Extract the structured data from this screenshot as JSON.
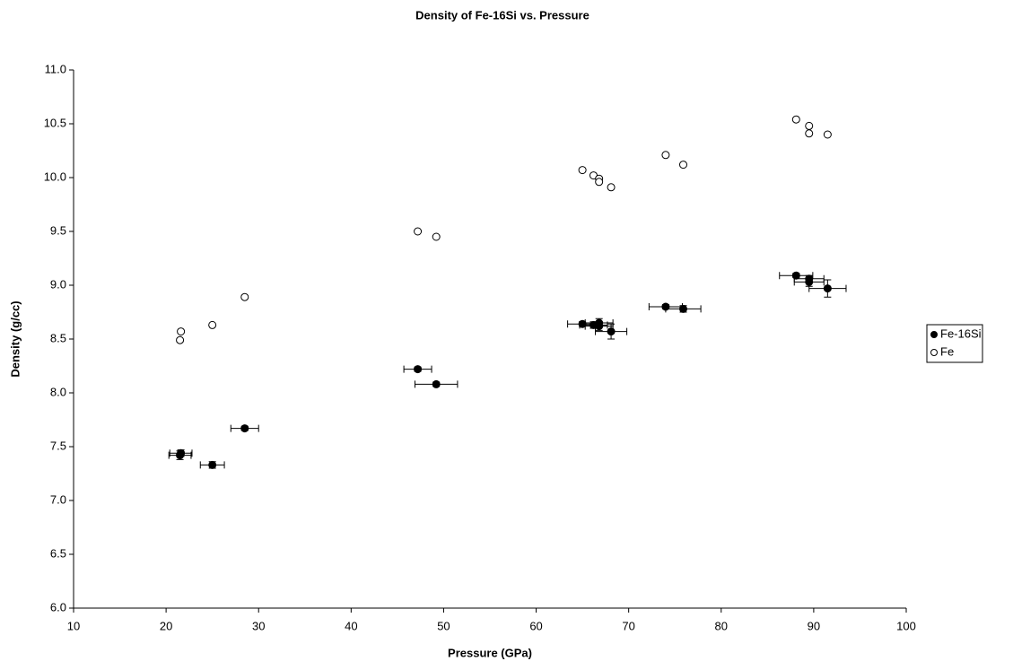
{
  "chart_data": {
    "type": "scatter",
    "title": "Density of Fe-16Si vs. Pressure",
    "x_label": "Pressure (GPa)",
    "y_label": "Density (g/cc)",
    "xlim": [
      10,
      100
    ],
    "xticks": [
      10,
      20,
      30,
      40,
      50,
      60,
      70,
      80,
      90,
      100
    ],
    "ylim": [
      6.0,
      11.0
    ],
    "yticks": [
      {
        "value": 6,
        "label": "6.0"
      },
      6.5,
      {
        "value": 7,
        "label": "7.0"
      },
      7.5,
      {
        "value": 8,
        "label": "8.0"
      },
      8.5,
      {
        "value": 9,
        "label": "9.0"
      },
      9.5,
      {
        "value": 10,
        "label": "10.0"
      },
      10.5,
      {
        "value": 11,
        "label": "11.0"
      }
    ],
    "grid": false,
    "legend": "right",
    "series": [
      {
        "name": "Fe-16Si",
        "color": "#000000",
        "marker": "filled",
        "x": [
          21.6,
          21.5,
          25.0,
          28.5,
          47.2,
          49.2,
          65.0,
          66.2,
          66.8,
          66.8,
          68.1,
          74.0,
          75.9,
          88.1,
          89.5,
          89.5,
          91.5
        ],
        "values": [
          7.44,
          7.42,
          7.33,
          7.67,
          8.22,
          8.08,
          8.64,
          8.63,
          8.65,
          8.62,
          8.57,
          8.8,
          8.78,
          9.09,
          9.06,
          9.03,
          8.97
        ],
        "xerr": [
          1.2,
          1.2,
          1.3,
          1.5,
          1.5,
          2.3,
          1.6,
          1.5,
          1.5,
          1.5,
          1.7,
          1.8,
          1.9,
          1.8,
          1.6,
          1.6,
          2.0
        ],
        "yerr": [
          0.03,
          0.04,
          0.03,
          0.02,
          0.02,
          0.02,
          0.02,
          0.03,
          0.04,
          0.04,
          0.07,
          0.02,
          0.03,
          0.02,
          0.03,
          0.04,
          0.08
        ]
      },
      {
        "name": "Fe",
        "color": "#000000",
        "marker": "open",
        "x": [
          21.5,
          21.6,
          25.0,
          28.5,
          47.2,
          49.2,
          65.0,
          66.2,
          66.8,
          66.8,
          68.1,
          74.0,
          75.9,
          88.1,
          89.5,
          89.5,
          91.5
        ],
        "values": [
          8.49,
          8.57,
          8.63,
          8.89,
          9.5,
          9.45,
          10.07,
          10.02,
          9.99,
          9.96,
          9.91,
          10.21,
          10.12,
          10.54,
          10.48,
          10.41,
          10.4
        ]
      }
    ]
  }
}
